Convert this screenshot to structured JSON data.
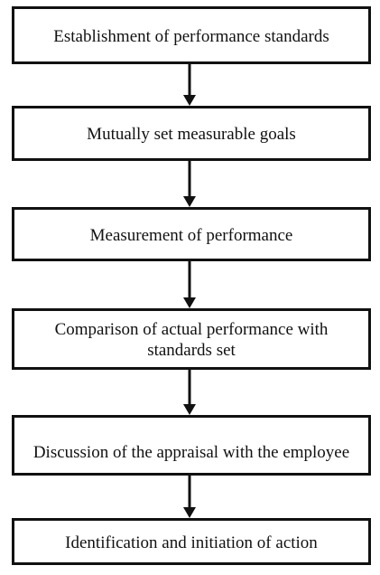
{
  "diagram": {
    "steps": [
      {
        "label": "Establishment of performance standards"
      },
      {
        "label": "Mutually set measurable goals"
      },
      {
        "label": "Measurement of performance"
      },
      {
        "label": "Comparison of actual performance with standards set"
      },
      {
        "label": "Discussion of the appraisal with the employee"
      },
      {
        "label": "Identification and initiation of action"
      }
    ],
    "colors": {
      "stroke": "#111111",
      "fill": "#ffffff"
    }
  }
}
